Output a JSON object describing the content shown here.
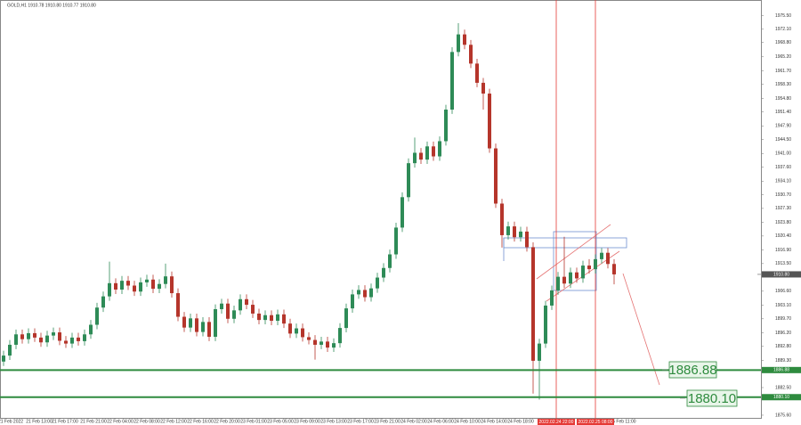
{
  "chart_data": {
    "type": "candlestick",
    "title": "GOLD,H1  1910.78 1910.80 1910.77 1910.80",
    "ylim": [
      1874.7,
      1979.4
    ],
    "yticks": [
      {
        "value": 1975.5,
        "label": "1975.50"
      },
      {
        "value": 1972.1,
        "label": "1972.10"
      },
      {
        "value": 1968.8,
        "label": "1968.80"
      },
      {
        "value": 1965.2,
        "label": "1965.20"
      },
      {
        "value": 1961.7,
        "label": "1961.70"
      },
      {
        "value": 1958.3,
        "label": "1958.30"
      },
      {
        "value": 1954.8,
        "label": "1954.80"
      },
      {
        "value": 1951.4,
        "label": "1951.40"
      },
      {
        "value": 1947.9,
        "label": "1947.90"
      },
      {
        "value": 1944.5,
        "label": "1944.50"
      },
      {
        "value": 1941,
        "label": "1941.00"
      },
      {
        "value": 1937.6,
        "label": "1937.60"
      },
      {
        "value": 1934.1,
        "label": "1934.10"
      },
      {
        "value": 1930.7,
        "label": "1930.70"
      },
      {
        "value": 1927.3,
        "label": "1927.30"
      },
      {
        "value": 1923.8,
        "label": "1923.80"
      },
      {
        "value": 1920.4,
        "label": "1920.40"
      },
      {
        "value": 1916.9,
        "label": "1916.90"
      },
      {
        "value": 1913.5,
        "label": "1913.50"
      },
      {
        "value": 1906.6,
        "label": "1906.60"
      },
      {
        "value": 1903.1,
        "label": "1903.10"
      },
      {
        "value": 1899.7,
        "label": "1899.70"
      },
      {
        "value": 1896.2,
        "label": "1896.20"
      },
      {
        "value": 1892.8,
        "label": "1892.80"
      },
      {
        "value": 1889.3,
        "label": "1889.30"
      },
      {
        "value": 1882.5,
        "label": "1882.50"
      },
      {
        "value": 1875.6,
        "label": "1875.60"
      }
    ],
    "time_labels": [
      "21 Feb 2022",
      "21 Feb 13:00",
      "21 Feb 17:00",
      "21 Feb 21:00",
      "22 Feb 04:00",
      "22 Feb 08:00",
      "22 Feb 12:00",
      "22 Feb 16:00",
      "22 Feb 20:00",
      "23 Feb 01:00",
      "23 Feb 05:00",
      "23 Feb 09:00",
      "23 Feb 13:00",
      "23 Feb 17:00",
      "23 Feb 21:00",
      "24 Feb 02:00",
      "24 Feb 06:00",
      "24 Feb 10:00",
      "24 Feb 14:00",
      "24 Feb 18:00",
      "25 Feb 11:00"
    ],
    "markers": [
      "2022.02.24 22:00",
      "2022.02.25 08:00"
    ],
    "marker_color": "#e53935",
    "up_color": "#2e8b57",
    "down_color": "#b5352b",
    "last_price": {
      "value": 1910.8,
      "label": "1910.80"
    },
    "levels": [
      {
        "value": 1886.88,
        "label": "1886.88"
      },
      {
        "value": 1880.1,
        "label": "1880.10"
      }
    ],
    "level_color": "#2e8b3e",
    "open": [
      1889.0,
      1890.5,
      1893.2,
      1895.8,
      1894.6,
      1896.1,
      1895.0,
      1893.8,
      1895.5,
      1896.3,
      1894.2,
      1893.5,
      1895.0,
      1894.1,
      1895.8,
      1898.2,
      1902.5,
      1905.3,
      1908.6,
      1907.0,
      1909.2,
      1908.0,
      1906.5,
      1908.8,
      1909.5,
      1907.2,
      1908.4,
      1910.3,
      1906.1,
      1900.2,
      1897.5,
      1899.8,
      1896.4,
      1898.9,
      1895.2,
      1902.1,
      1903.5,
      1899.7,
      1901.8,
      1904.6,
      1903.2,
      1901.0,
      1899.4,
      1900.6,
      1899.2,
      1900.8,
      1898.5,
      1896.0,
      1897.3,
      1895.1,
      1894.4,
      1893.2,
      1894.0,
      1892.5,
      1893.6,
      1897.4,
      1902.3,
      1905.8,
      1906.9,
      1905.1,
      1907.3,
      1910.0,
      1912.4,
      1915.8,
      1922.5,
      1930.1,
      1938.6,
      1941.2,
      1939.5,
      1942.8,
      1940.3,
      1944.1,
      1952.0,
      1966.4,
      1970.8,
      1968.2,
      1963.5,
      1958.7,
      1956.0,
      1942.3,
      1928.5,
      1920.6,
      1922.8,
      1920.1,
      1921.5,
      1917.6,
      1889.2,
      1893.5,
      1903.0,
      1906.8,
      1910.2,
      1908.5,
      1911.3,
      1909.8,
      1913.0,
      1912.1,
      1914.6,
      1916.2,
      1913.4
    ],
    "high": [
      1891.7,
      1894.4,
      1897.0,
      1897.0,
      1897.3,
      1897.3,
      1896.2,
      1896.7,
      1897.5,
      1897.5,
      1895.4,
      1896.2,
      1896.2,
      1897.0,
      1899.4,
      1903.7,
      1906.5,
      1914.0,
      1909.8,
      1910.4,
      1910.4,
      1909.2,
      1910.0,
      1910.7,
      1910.7,
      1909.6,
      1913.5,
      1911.5,
      1907.3,
      1901.4,
      1901.0,
      1901.0,
      1900.1,
      1900.1,
      1903.3,
      1904.7,
      1904.7,
      1903.0,
      1905.8,
      1905.8,
      1904.4,
      1902.2,
      1901.8,
      1901.8,
      1902.0,
      1902.0,
      1899.7,
      1898.5,
      1898.5,
      1896.3,
      1895.6,
      1895.2,
      1895.2,
      1894.8,
      1898.6,
      1903.5,
      1907.0,
      1908.1,
      1908.1,
      1908.5,
      1911.2,
      1913.6,
      1917.0,
      1923.7,
      1931.3,
      1939.8,
      1945.0,
      1942.4,
      1944.0,
      1944.0,
      1945.3,
      1953.2,
      1967.6,
      1973.6,
      1972.0,
      1969.4,
      1964.7,
      1959.9,
      1957.2,
      1943.5,
      1929.7,
      1924.0,
      1924.0,
      1922.7,
      1922.7,
      1918.8,
      1894.7,
      1904.2,
      1908.0,
      1911.4,
      1920.2,
      1912.5,
      1912.5,
      1914.2,
      1914.6,
      1915.8,
      1917.4,
      1917.4,
      1914.6
    ],
    "low": [
      1887.9,
      1889.4,
      1892.1,
      1893.5,
      1893.5,
      1893.9,
      1892.7,
      1892.7,
      1894.4,
      1893.1,
      1892.4,
      1892.4,
      1893.0,
      1893.0,
      1894.7,
      1897.1,
      1901.4,
      1904.2,
      1905.9,
      1905.9,
      1906.9,
      1905.4,
      1905.4,
      1907.7,
      1906.1,
      1906.1,
      1907.3,
      1905.0,
      1899.1,
      1896.4,
      1896.4,
      1895.3,
      1895.3,
      1894.1,
      1894.1,
      1901.0,
      1898.6,
      1898.6,
      1900.7,
      1902.1,
      1899.9,
      1898.3,
      1898.3,
      1898.1,
      1898.1,
      1897.4,
      1894.9,
      1894.9,
      1894.0,
      1893.3,
      1889.5,
      1892.1,
      1891.4,
      1891.4,
      1892.5,
      1896.3,
      1901.2,
      1904.7,
      1904.0,
      1904.0,
      1906.2,
      1908.9,
      1911.3,
      1914.7,
      1921.4,
      1929.0,
      1937.5,
      1938.4,
      1938.4,
      1939.2,
      1939.2,
      1943.0,
      1950.9,
      1965.3,
      1967.1,
      1962.4,
      1957.6,
      1952.0,
      1941.2,
      1927.4,
      1917.5,
      1919.5,
      1919.0,
      1919.0,
      1916.5,
      1881.0,
      1879.5,
      1892.4,
      1901.9,
      1905.7,
      1907.4,
      1907.4,
      1908.7,
      1908.7,
      1911.0,
      1911.0,
      1913.5,
      1912.3,
      1908.3
    ],
    "close": [
      1890.5,
      1893.2,
      1895.8,
      1894.6,
      1896.1,
      1895.0,
      1893.8,
      1895.5,
      1896.3,
      1894.2,
      1893.5,
      1895.0,
      1894.1,
      1895.8,
      1898.2,
      1902.5,
      1905.3,
      1908.6,
      1907.0,
      1909.2,
      1908.0,
      1906.5,
      1908.8,
      1909.5,
      1907.2,
      1908.4,
      1910.3,
      1906.1,
      1900.2,
      1897.5,
      1899.8,
      1896.4,
      1898.9,
      1895.2,
      1902.1,
      1903.5,
      1899.7,
      1901.8,
      1904.6,
      1903.2,
      1901.0,
      1899.4,
      1900.6,
      1899.2,
      1900.8,
      1898.5,
      1896.0,
      1897.3,
      1895.1,
      1894.4,
      1893.2,
      1894.0,
      1892.5,
      1893.6,
      1897.4,
      1902.3,
      1905.8,
      1906.9,
      1905.1,
      1907.3,
      1910.0,
      1912.4,
      1915.8,
      1922.5,
      1930.1,
      1938.6,
      1941.2,
      1939.5,
      1942.8,
      1940.3,
      1944.1,
      1952.0,
      1966.4,
      1970.8,
      1968.2,
      1963.5,
      1958.7,
      1956.0,
      1942.3,
      1928.5,
      1920.6,
      1922.8,
      1920.1,
      1921.5,
      1917.6,
      1889.2,
      1893.5,
      1903.0,
      1906.8,
      1910.2,
      1908.5,
      1911.3,
      1909.8,
      1913.0,
      1912.1,
      1914.6,
      1916.2,
      1913.4,
      1910.8
    ]
  }
}
